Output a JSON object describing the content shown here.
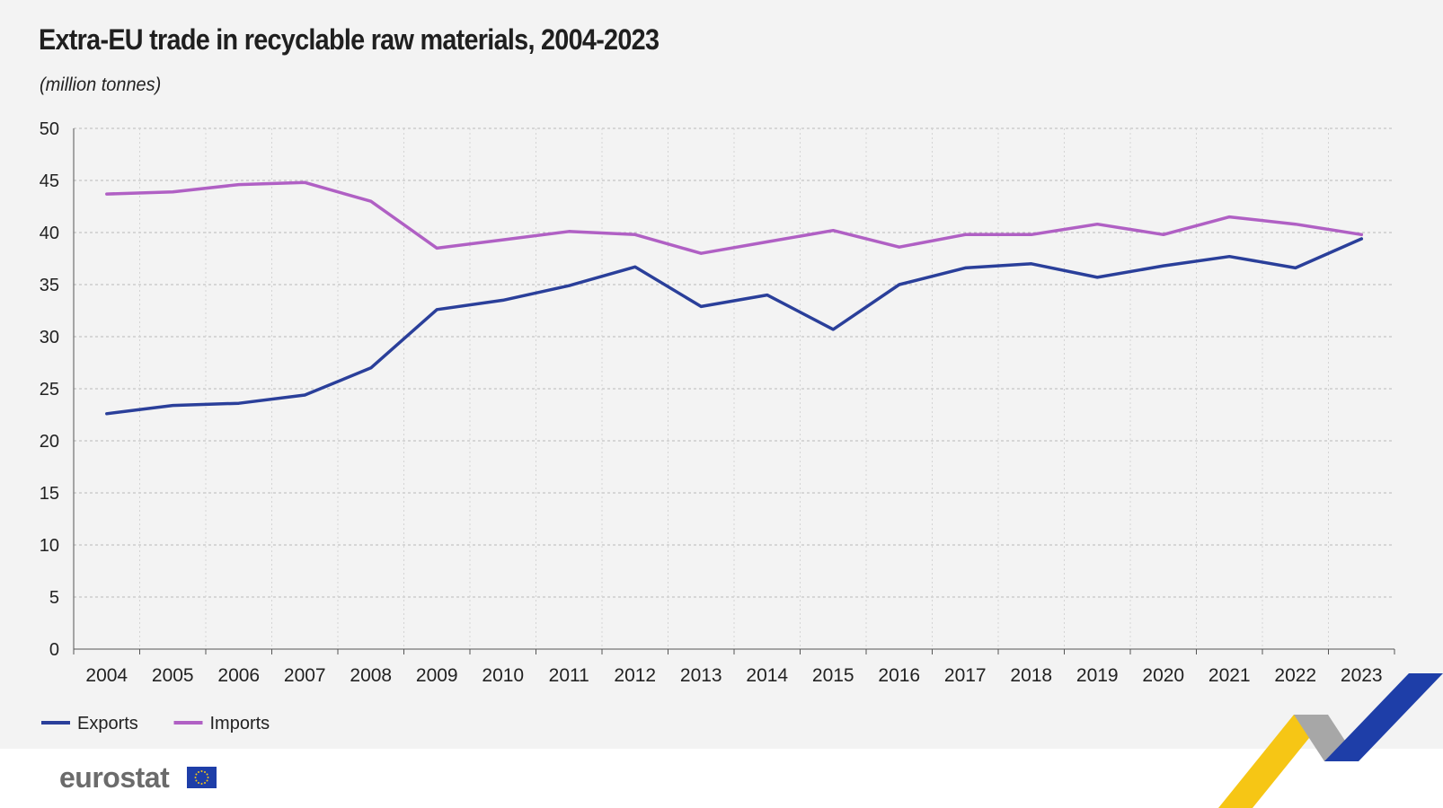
{
  "header": {
    "title": "Extra-EU trade in recyclable raw materials, 2004-2023",
    "subtitle": "(million tonnes)"
  },
  "footer": {
    "logo_text": "eurostat",
    "flag_icon": "eu-flag-icon",
    "ribbon_colors": [
      "#f6c615",
      "#a7a7a7",
      "#1e3ea8"
    ]
  },
  "chart_data": {
    "type": "line",
    "title": "Extra-EU trade in recyclable raw materials, 2004-2023",
    "subtitle": "(million tonnes)",
    "xlabel": "",
    "ylabel": "",
    "x": [
      "2004",
      "2005",
      "2006",
      "2007",
      "2008",
      "2009",
      "2010",
      "2011",
      "2012",
      "2013",
      "2014",
      "2015",
      "2016",
      "2017",
      "2018",
      "2019",
      "2020",
      "2021",
      "2022",
      "2023"
    ],
    "ylim": [
      0,
      50
    ],
    "yticks": [
      0,
      5,
      10,
      15,
      20,
      25,
      30,
      35,
      40,
      45,
      50
    ],
    "grid": true,
    "legend_placement": "bottom-left",
    "series": [
      {
        "name": "Exports",
        "color": "#2a3f9a",
        "values": [
          22.6,
          23.4,
          23.6,
          24.4,
          27.0,
          32.6,
          33.5,
          34.9,
          36.7,
          32.9,
          34.0,
          30.7,
          35.0,
          36.6,
          37.0,
          35.7,
          36.8,
          37.7,
          36.6,
          39.4
        ]
      },
      {
        "name": "Imports",
        "color": "#b060c4",
        "values": [
          43.7,
          43.9,
          44.6,
          44.8,
          43.0,
          38.5,
          39.3,
          40.1,
          39.8,
          38.0,
          39.1,
          40.2,
          38.6,
          39.8,
          39.8,
          40.8,
          39.8,
          41.5,
          40.8,
          39.8
        ]
      }
    ]
  }
}
